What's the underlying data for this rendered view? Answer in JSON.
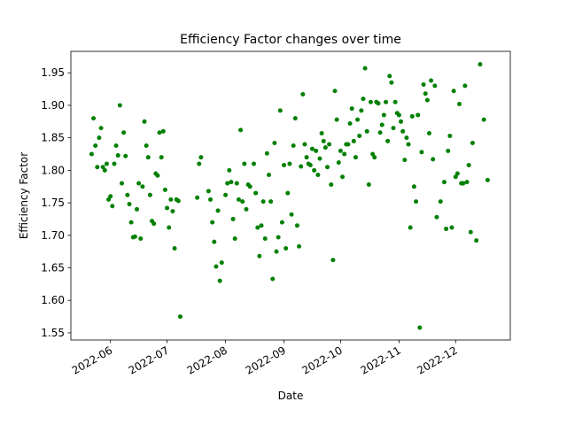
{
  "chart_data": {
    "type": "line",
    "title": "Efficiency Factor changes over time",
    "xlabel": "Date",
    "ylabel": "Efficiency Factor",
    "color": "#008000",
    "x": [
      "2022-05-22",
      "2022-05-23",
      "2022-05-24",
      "2022-05-25",
      "2022-05-26",
      "2022-05-27",
      "2022-05-28",
      "2022-05-29",
      "2022-05-30",
      "2022-05-31",
      "2022-06-01",
      "2022-06-02",
      "2022-06-03",
      "2022-06-04",
      "2022-06-05",
      "2022-06-06",
      "2022-06-07",
      "2022-06-08",
      "2022-06-09",
      "2022-06-10",
      "2022-06-11",
      "2022-06-12",
      "2022-06-13",
      "2022-06-14",
      "2022-06-15",
      "2022-06-16",
      "2022-06-17",
      "2022-06-18",
      "2022-06-19",
      "2022-06-20",
      "2022-06-21",
      "2022-06-22",
      "2022-06-23",
      "2022-06-24",
      "2022-06-25",
      "2022-06-26",
      "2022-06-27",
      "2022-06-28",
      "2022-06-29",
      "2022-06-30",
      "2022-07-01",
      "2022-07-02",
      "2022-07-03",
      "2022-07-04",
      "2022-07-05",
      "2022-07-06",
      "2022-07-07",
      "2022-07-08",
      "2022-07-17",
      "2022-07-18",
      "2022-07-19",
      "2022-07-23",
      "2022-07-24",
      "2022-07-25",
      "2022-07-26",
      "2022-07-27",
      "2022-07-28",
      "2022-07-29",
      "2022-07-30",
      "2022-08-01",
      "2022-08-02",
      "2022-08-03",
      "2022-08-04",
      "2022-08-05",
      "2022-08-06",
      "2022-08-07",
      "2022-08-08",
      "2022-08-09",
      "2022-08-10",
      "2022-08-11",
      "2022-08-12",
      "2022-08-13",
      "2022-08-14",
      "2022-08-16",
      "2022-08-17",
      "2022-08-18",
      "2022-08-19",
      "2022-08-20",
      "2022-08-21",
      "2022-08-22",
      "2022-08-23",
      "2022-08-24",
      "2022-08-25",
      "2022-08-26",
      "2022-08-27",
      "2022-08-28",
      "2022-08-29",
      "2022-08-30",
      "2022-08-31",
      "2022-09-01",
      "2022-09-02",
      "2022-09-03",
      "2022-09-04",
      "2022-09-05",
      "2022-09-06",
      "2022-09-07",
      "2022-09-08",
      "2022-09-09",
      "2022-09-10",
      "2022-09-11",
      "2022-09-12",
      "2022-09-13",
      "2022-09-14",
      "2022-09-15",
      "2022-09-16",
      "2022-09-17",
      "2022-09-18",
      "2022-09-19",
      "2022-09-20",
      "2022-09-21",
      "2022-09-22",
      "2022-09-23",
      "2022-09-24",
      "2022-09-25",
      "2022-09-26",
      "2022-09-27",
      "2022-09-28",
      "2022-09-29",
      "2022-09-30",
      "2022-10-01",
      "2022-10-02",
      "2022-10-03",
      "2022-10-04",
      "2022-10-05",
      "2022-10-06",
      "2022-10-07",
      "2022-10-08",
      "2022-10-09",
      "2022-10-10",
      "2022-10-11",
      "2022-10-12",
      "2022-10-13",
      "2022-10-14",
      "2022-10-15",
      "2022-10-16",
      "2022-10-17",
      "2022-10-18",
      "2022-10-19",
      "2022-10-20",
      "2022-10-21",
      "2022-10-22",
      "2022-10-23",
      "2022-10-24",
      "2022-10-25",
      "2022-10-26",
      "2022-10-27",
      "2022-10-28",
      "2022-10-29",
      "2022-10-30",
      "2022-10-31",
      "2022-11-01",
      "2022-11-02",
      "2022-11-03",
      "2022-11-04",
      "2022-11-05",
      "2022-11-06",
      "2022-11-07",
      "2022-11-08",
      "2022-11-09",
      "2022-11-10",
      "2022-11-11",
      "2022-11-12",
      "2022-11-13",
      "2022-11-14",
      "2022-11-15",
      "2022-11-16",
      "2022-11-17",
      "2022-11-18",
      "2022-11-19",
      "2022-11-20",
      "2022-11-21",
      "2022-11-23",
      "2022-11-25",
      "2022-11-26",
      "2022-11-27",
      "2022-11-28",
      "2022-11-29",
      "2022-11-30",
      "2022-12-01",
      "2022-12-02",
      "2022-12-03",
      "2022-12-04",
      "2022-12-05",
      "2022-12-06",
      "2022-12-07",
      "2022-12-08",
      "2022-12-09",
      "2022-12-10",
      "2022-12-12",
      "2022-12-14",
      "2022-12-16",
      "2022-12-18"
    ],
    "values": [
      1.825,
      1.88,
      1.838,
      1.805,
      1.85,
      1.865,
      1.805,
      1.8,
      1.81,
      1.755,
      1.76,
      1.745,
      1.81,
      1.838,
      1.823,
      1.9,
      1.78,
      1.858,
      1.822,
      1.762,
      1.748,
      1.72,
      1.697,
      1.698,
      1.74,
      1.78,
      1.695,
      1.775,
      1.875,
      1.838,
      1.82,
      1.762,
      1.722,
      1.718,
      1.795,
      1.792,
      1.858,
      1.82,
      1.86,
      1.77,
      1.742,
      1.712,
      1.755,
      1.737,
      1.68,
      1.755,
      1.753,
      1.575,
      1.758,
      1.81,
      1.82,
      1.768,
      1.755,
      1.72,
      1.69,
      1.652,
      1.738,
      1.63,
      1.658,
      1.762,
      1.78,
      1.8,
      1.782,
      1.725,
      1.695,
      1.78,
      1.755,
      1.862,
      1.752,
      1.81,
      1.74,
      1.778,
      1.775,
      1.81,
      1.765,
      1.712,
      1.668,
      1.715,
      1.752,
      1.695,
      1.826,
      1.793,
      1.752,
      1.633,
      1.842,
      1.675,
      1.697,
      1.892,
      1.72,
      1.808,
      1.68,
      1.765,
      1.81,
      1.732,
      1.838,
      1.88,
      1.715,
      1.683,
      1.806,
      1.917,
      1.84,
      1.82,
      1.81,
      1.808,
      1.833,
      1.8,
      1.83,
      1.793,
      1.818,
      1.857,
      1.845,
      1.835,
      1.805,
      1.84,
      1.778,
      1.662,
      1.922,
      1.878,
      1.812,
      1.83,
      1.79,
      1.825,
      1.84,
      1.84,
      1.872,
      1.895,
      1.845,
      1.82,
      1.878,
      1.853,
      1.892,
      1.91,
      1.957,
      1.86,
      1.778,
      1.905,
      1.825,
      1.82,
      1.905,
      1.903,
      1.858,
      1.87,
      1.885,
      1.905,
      1.845,
      1.945,
      1.935,
      1.865,
      1.905,
      1.888,
      1.885,
      1.875,
      1.86,
      1.816,
      1.85,
      1.84,
      1.712,
      1.883,
      1.775,
      1.752,
      1.885,
      1.558,
      1.828,
      1.932,
      1.918,
      1.908,
      1.857,
      1.938,
      1.817,
      1.93,
      1.728,
      1.752,
      1.782,
      1.71,
      1.83,
      1.853,
      1.712,
      1.922,
      1.79,
      1.795,
      1.902,
      1.78,
      1.78,
      1.93,
      1.782,
      1.808,
      1.705,
      1.842,
      1.692,
      1.963,
      1.878,
      1.785
    ],
    "xlim": [
      "2022-05-11",
      "2022-12-30"
    ],
    "xticks": [
      {
        "value": "2022-06-01",
        "label": "2022-06"
      },
      {
        "value": "2022-07-01",
        "label": "2022-07"
      },
      {
        "value": "2022-08-01",
        "label": "2022-08"
      },
      {
        "value": "2022-09-01",
        "label": "2022-09"
      },
      {
        "value": "2022-10-01",
        "label": "2022-10"
      },
      {
        "value": "2022-11-01",
        "label": "2022-11"
      },
      {
        "value": "2022-12-01",
        "label": "2022-12"
      }
    ],
    "ylim": [
      1.539,
      1.983
    ],
    "yticks": [
      1.55,
      {
        "value": 1.6,
        "label": "1.60"
      },
      1.65,
      {
        "value": 1.7,
        "label": "1.70"
      },
      1.75,
      {
        "value": 1.8,
        "label": "1.80"
      },
      1.85,
      {
        "value": 1.9,
        "label": "1.90"
      },
      1.95
    ],
    "grid": false
  }
}
